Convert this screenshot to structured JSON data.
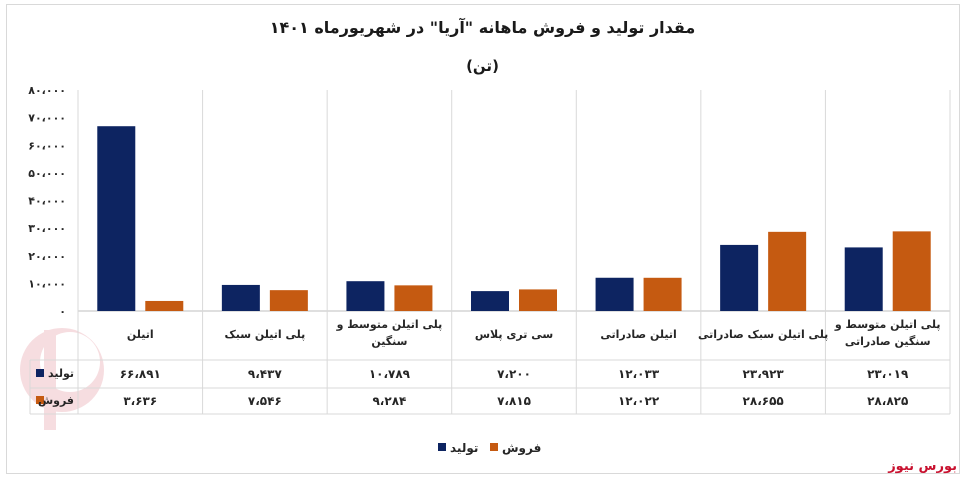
{
  "chart_data": {
    "type": "bar",
    "title": "مقدار تولید و فروش ماهانه \"آریا\" در شهریورماه ۱۴۰۱",
    "subtitle": "(تن)",
    "categories": [
      "اتیلن",
      "پلی اتیلن سبک",
      "پلی اتیلن متوسط و سنگین",
      "سی تری پلاس",
      "اتیلن صادراتی",
      "پلی اتیلن سبک صادراتی",
      "پلی اتیلن متوسط و سنگین صادراتی"
    ],
    "category_lines": [
      [
        "اتیلن"
      ],
      [
        "پلی اتیلن سبک"
      ],
      [
        "پلی اتیلن متوسط و",
        "سنگین"
      ],
      [
        "سی تری پلاس"
      ],
      [
        "اتیلن صادراتی"
      ],
      [
        "پلی اتیلن سبک صادراتی"
      ],
      [
        "پلی اتیلن متوسط و",
        "سنگین صادراتی"
      ]
    ],
    "series": [
      {
        "name": "تولید",
        "color": "#0d2461",
        "values": [
          66891,
          9437,
          10789,
          7200,
          12033,
          23923,
          23019
        ],
        "labels": [
          "۶۶،۸۹۱",
          "۹،۴۳۷",
          "۱۰،۷۸۹",
          "۷،۲۰۰",
          "۱۲،۰۳۳",
          "۲۳،۹۲۳",
          "۲۳،۰۱۹"
        ]
      },
      {
        "name": "فروش",
        "color": "#c55a11",
        "values": [
          3636,
          7546,
          9284,
          7815,
          12022,
          28655,
          28825
        ],
        "labels": [
          "۳،۶۳۶",
          "۷،۵۴۶",
          "۹،۲۸۴",
          "۷،۸۱۵",
          "۱۲،۰۲۲",
          "۲۸،۶۵۵",
          "۲۸،۸۲۵"
        ]
      }
    ],
    "ylim": [
      0,
      80000
    ],
    "yticks": [
      0,
      10000,
      20000,
      30000,
      40000,
      50000,
      60000,
      70000,
      80000
    ],
    "ytick_labels": [
      "۰",
      "۱۰،۰۰۰",
      "۲۰،۰۰۰",
      "۳۰،۰۰۰",
      "۴۰،۰۰۰",
      "۵۰،۰۰۰",
      "۶۰،۰۰۰",
      "۷۰،۰۰۰",
      "۸۰،۰۰۰"
    ],
    "grid": "vertical-category-lines",
    "legend_position": "bottom-center",
    "data_table": true
  },
  "brand": "بورس نیوز"
}
